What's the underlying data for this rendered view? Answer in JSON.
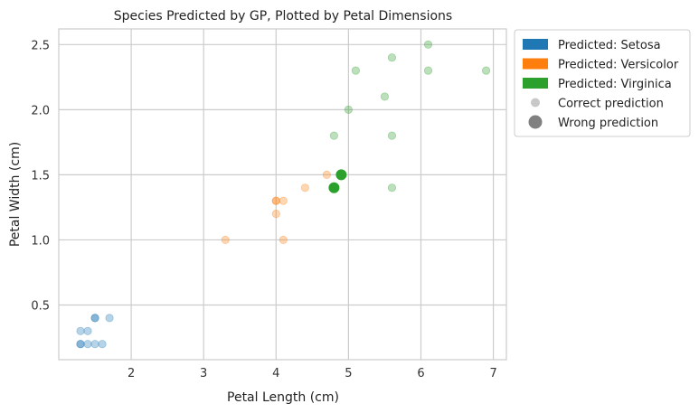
{
  "chart_data": {
    "type": "scatter",
    "title": "Species Predicted by GP, Plotted by Petal Dimensions",
    "xlabel": "Petal Length (cm)",
    "ylabel": "Petal Width (cm)",
    "xlim": [
      1.0,
      7.18
    ],
    "ylim": [
      0.08,
      2.62
    ],
    "xticks": [
      2,
      3,
      4,
      5,
      6,
      7
    ],
    "xtick_labels": [
      "2",
      "3",
      "4",
      "5",
      "6",
      "7"
    ],
    "yticks": [
      0.5,
      1.0,
      1.5,
      2.0,
      2.5
    ],
    "ytick_labels": [
      "0.5",
      "1.0",
      "1.5",
      "2.0",
      "2.5"
    ],
    "grid": true,
    "legend_position": "outside-upper-right",
    "series": [
      {
        "name": "Predicted: Setosa",
        "color": "#1f77b4",
        "correct": [
          [
            1.3,
            0.2
          ],
          [
            1.3,
            0.3
          ],
          [
            1.4,
            0.2
          ],
          [
            1.4,
            0.3
          ],
          [
            1.5,
            0.2
          ],
          [
            1.5,
            0.4
          ],
          [
            1.5,
            0.4
          ],
          [
            1.6,
            0.2
          ],
          [
            1.7,
            0.4
          ],
          [
            1.3,
            0.2
          ]
        ],
        "wrong": []
      },
      {
        "name": "Predicted: Versicolor",
        "color": "#ff7f0e",
        "correct": [
          [
            3.3,
            1.0
          ],
          [
            4.0,
            1.3
          ],
          [
            4.0,
            1.3
          ],
          [
            4.0,
            1.2
          ],
          [
            4.1,
            1.3
          ],
          [
            4.1,
            1.0
          ],
          [
            4.4,
            1.4
          ],
          [
            4.7,
            1.5
          ]
        ],
        "wrong": []
      },
      {
        "name": "Predicted: Virginica",
        "color": "#2ca02c",
        "correct": [
          [
            4.8,
            1.8
          ],
          [
            5.0,
            2.0
          ],
          [
            5.1,
            2.3
          ],
          [
            5.5,
            2.1
          ],
          [
            5.6,
            2.4
          ],
          [
            5.6,
            1.8
          ],
          [
            5.6,
            1.4
          ],
          [
            6.1,
            2.5
          ],
          [
            6.1,
            2.3
          ],
          [
            6.9,
            2.3
          ]
        ],
        "wrong": [
          [
            4.8,
            1.4
          ],
          [
            4.9,
            1.5
          ]
        ]
      }
    ],
    "legend": [
      {
        "label": "Predicted: Setosa",
        "kind": "patch",
        "color": "#1f77b4"
      },
      {
        "label": "Predicted: Versicolor",
        "kind": "patch",
        "color": "#ff7f0e"
      },
      {
        "label": "Predicted: Virginica",
        "kind": "patch",
        "color": "#2ca02c"
      },
      {
        "label": "Correct prediction",
        "kind": "marker",
        "color": "#c8c8c8"
      },
      {
        "label": "Wrong prediction",
        "kind": "marker",
        "color": "#808080"
      }
    ]
  }
}
